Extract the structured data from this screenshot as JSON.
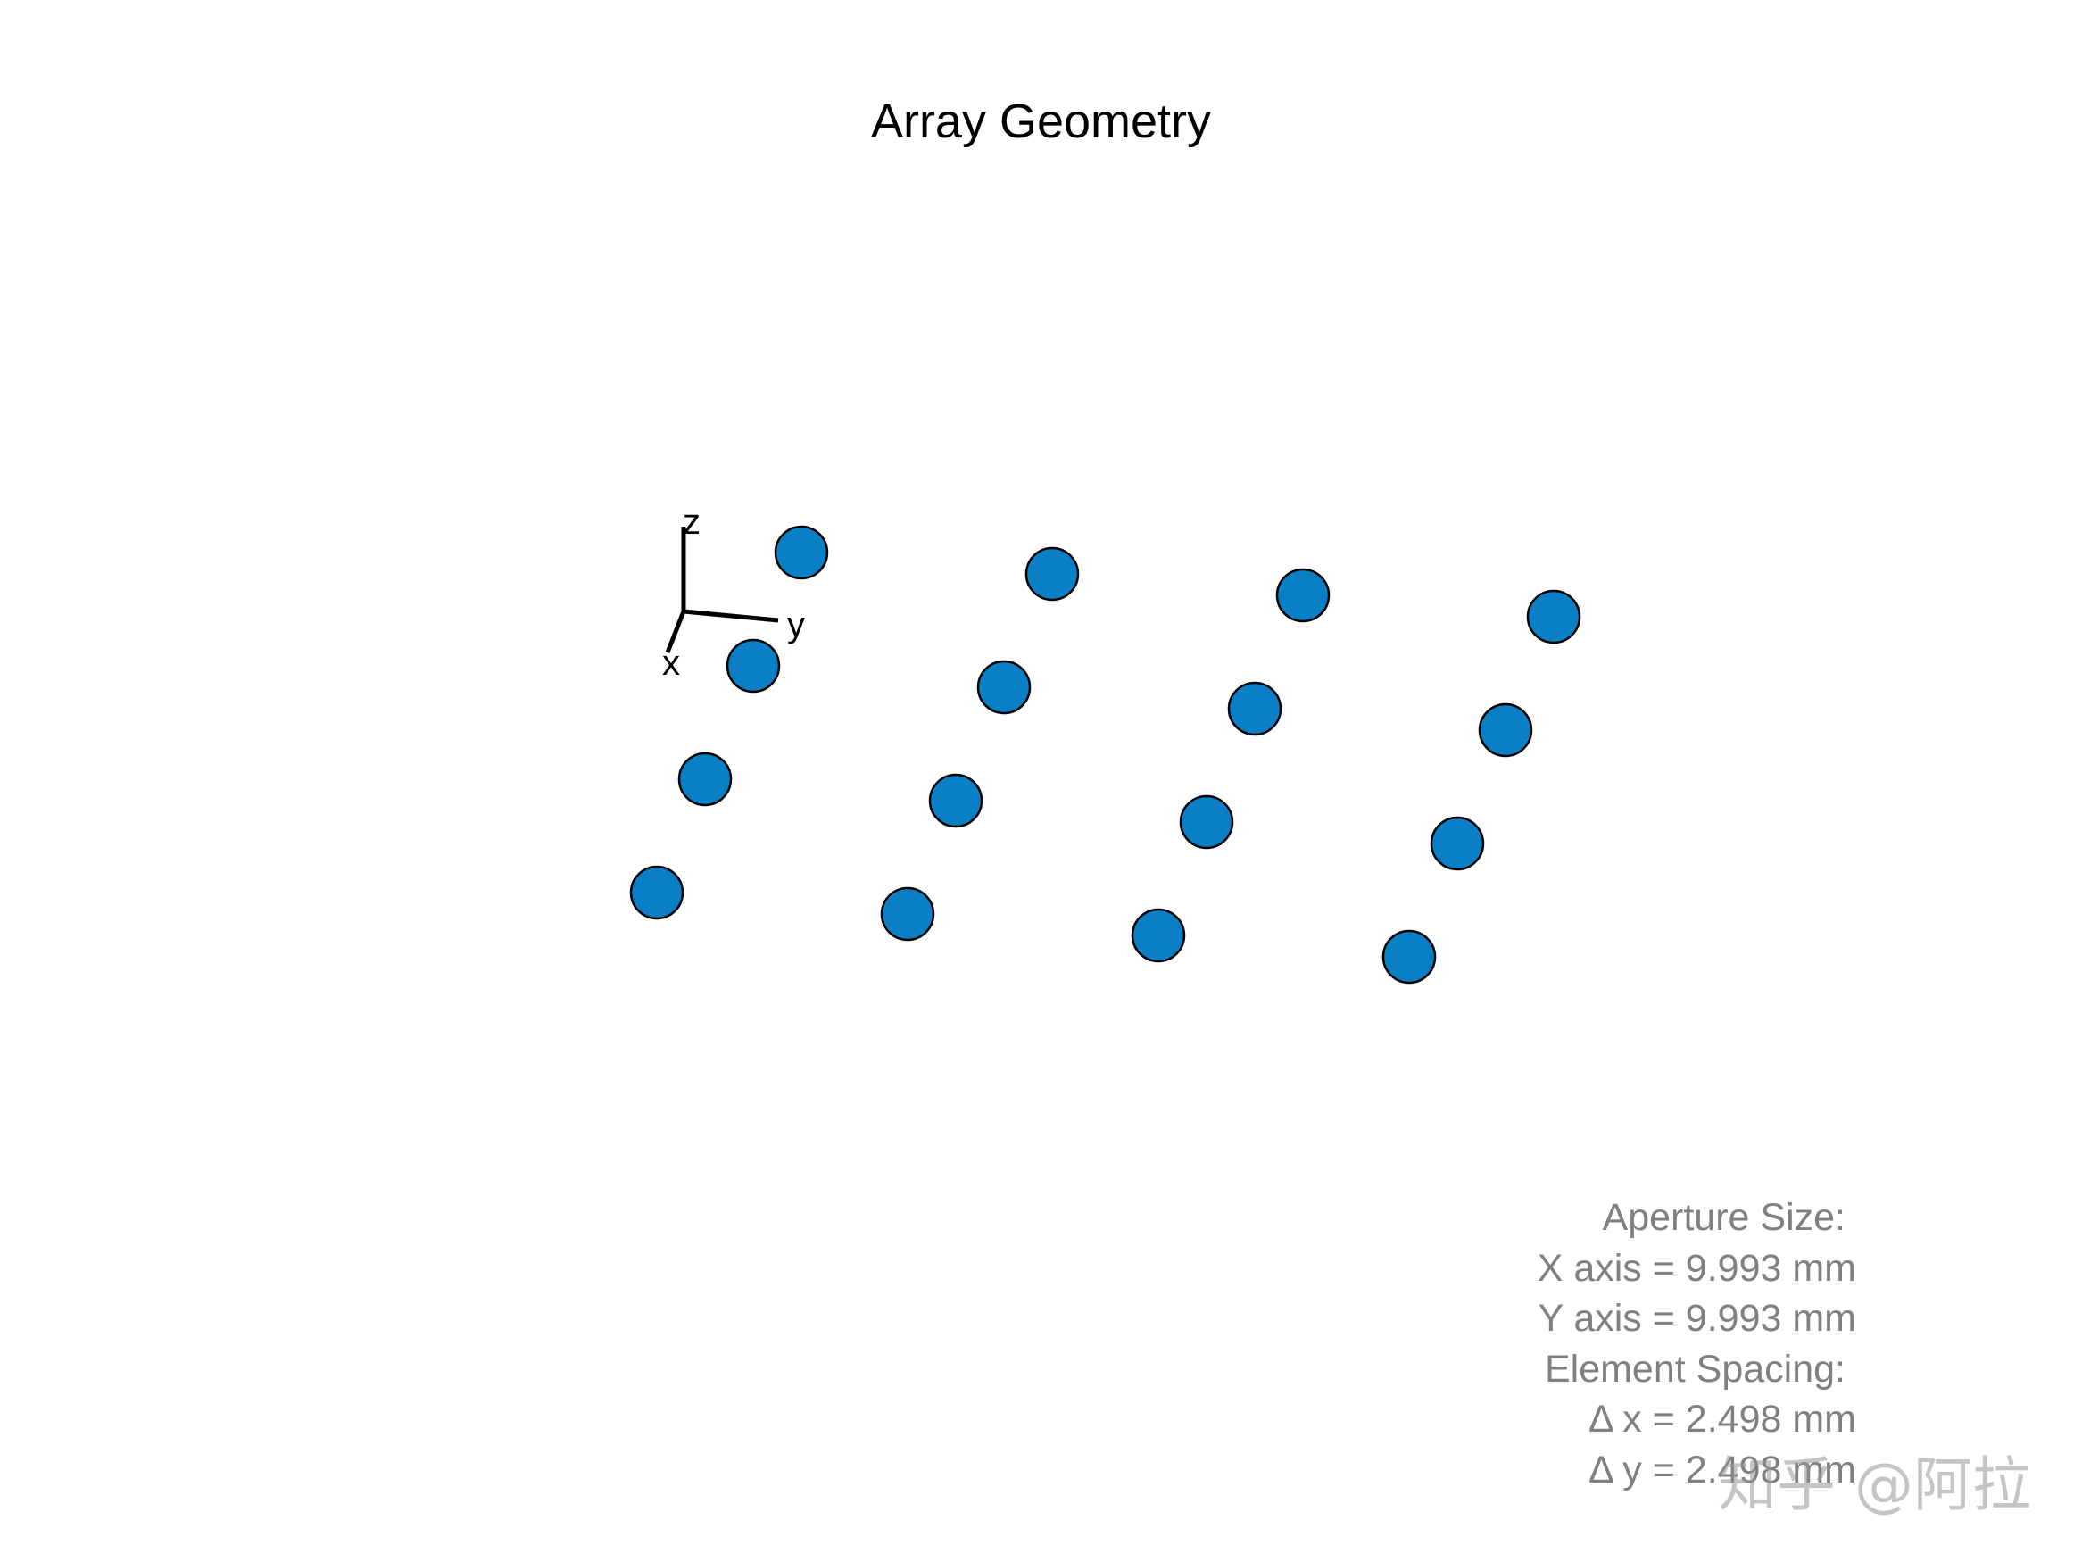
{
  "title": "Array Geometry",
  "axes_triad": {
    "z_label": "z",
    "y_label": "y",
    "x_label": "x"
  },
  "elements": {
    "count": 16,
    "layout": "4x4 uniform rectangular array",
    "fill_color": "#0B7FC6",
    "edge_color": "#000000"
  },
  "aperture": {
    "heading": "Aperture Size:",
    "x_axis": "X axis = 9.993 mm",
    "y_axis": "Y axis = 9.993 mm"
  },
  "spacing": {
    "heading": "Element Spacing:",
    "dx": "Δ x = 2.498 mm",
    "dy": "Δ y = 2.498 mm"
  },
  "watermark": "知乎 @阿拉"
}
